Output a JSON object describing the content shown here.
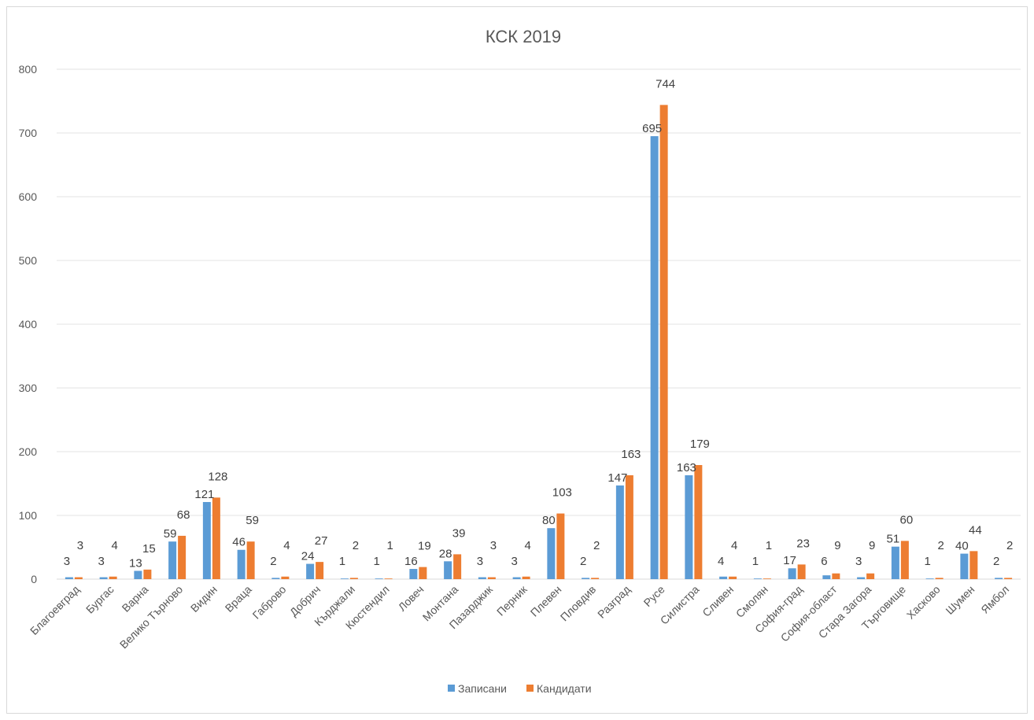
{
  "chart_data": {
    "type": "bar",
    "title": "КСК 2019",
    "xlabel": "",
    "ylabel": "",
    "ylim": [
      0,
      800
    ],
    "yticks": [
      0,
      100,
      200,
      300,
      400,
      500,
      600,
      700,
      800
    ],
    "grid": true,
    "legend_position": "bottom",
    "categories": [
      "Благоевград",
      "Бургас",
      "Варна",
      "Велико Търново",
      "Видин",
      "Враца",
      "Габрово",
      "Добрич",
      "Кърджали",
      "Кюстендил",
      "Ловеч",
      "Монтана",
      "Пазарджик",
      "Перник",
      "Плевен",
      "Пловдив",
      "Разград",
      "Русе",
      "Силистра",
      "Сливен",
      "Смолян",
      "София-град",
      "София-област",
      "Стара Загора",
      "Търговище",
      "Хасково",
      "Шумен",
      "Ямбол"
    ],
    "series": [
      {
        "name": "Записани",
        "color": "#5b9bd5",
        "values": [
          3,
          3,
          13,
          59,
          121,
          46,
          2,
          24,
          1,
          1,
          16,
          28,
          3,
          3,
          80,
          2,
          147,
          695,
          163,
          4,
          1,
          17,
          6,
          3,
          51,
          1,
          40,
          2
        ]
      },
      {
        "name": "Кандидати",
        "color": "#ed7d31",
        "values": [
          3,
          4,
          15,
          68,
          128,
          59,
          4,
          27,
          2,
          1,
          19,
          39,
          3,
          4,
          103,
          2,
          163,
          744,
          179,
          4,
          1,
          23,
          9,
          9,
          60,
          2,
          44,
          2
        ]
      }
    ]
  }
}
